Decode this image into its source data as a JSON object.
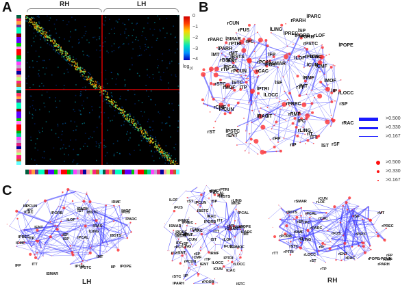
{
  "figure": {
    "panel_a": {
      "letter": "A",
      "hemisphere_labels": [
        "RH",
        "LH"
      ],
      "colorbar": {
        "ticks": [
          "0",
          "−1",
          "−2",
          "−3",
          "−4"
        ],
        "unit": "log",
        "unit_sub": "10",
        "colors": [
          "#d00000",
          "#ffd000",
          "#00e0c0",
          "#0090ff",
          "#0000c0"
        ]
      },
      "divider_color": "#cc0000",
      "strip_colors": [
        "#006040",
        "#ff3060",
        "#ffa040",
        "#703090",
        "#00ffc0",
        "#00ffc0",
        "#800000",
        "#6000ff",
        "#6000ff",
        "#00d000",
        "#ff80ff",
        "#ff0000",
        "#ff0000",
        "#00b000",
        "#00d0a0",
        "#ff40ff",
        "#c0a0d0",
        "#e02080",
        "#0000a0",
        "#ffa0a0",
        "#c0ff80",
        "#ff2080",
        "#c06020",
        "#60ffff"
      ]
    },
    "panel_b": {
      "letter": "B",
      "node_labels": [
        "rPORB",
        "rRMF",
        "rLOF",
        "rPTRI",
        "lLOF",
        "lMOF",
        "lPORB",
        "rMOF",
        "rFP",
        "lFP",
        "lRAC",
        "rRAC",
        "rSF",
        "rPOPE",
        "lRMF",
        "lPTRI",
        "lSF",
        "lPOPE",
        "lENT",
        "rCMF",
        "rTP",
        "rPREC",
        "rPSTC",
        "rSMAR",
        "rST",
        "lCMF",
        "rCAC",
        "lCAC",
        "rTT",
        "rENT",
        "rMT",
        "rPARH",
        "lSMAR",
        "lPREC",
        "rPARC",
        "lMT",
        "rPC",
        "lBSTS",
        "rBSTS",
        "lPC",
        "lIT",
        "rIT",
        "lMT",
        "lPSTC",
        "lIP",
        "lPARC",
        "rIP",
        "rSP",
        "lPARH",
        "rPCUN",
        "lTP",
        "lFUS",
        "lSTC",
        "rSTC",
        "lPCUN",
        "rLOCC",
        "lTT",
        "lLOCC",
        "lST",
        "lSP",
        "lCUN",
        "rCUN",
        "lPCAL",
        "rPCAL",
        "rFUS",
        "lLING",
        "rLING"
      ],
      "edge_legend": [
        ">0.500",
        ">0.330",
        ">0.167"
      ],
      "node_legend": [
        ">0.500",
        ">0.330",
        ">0.167"
      ],
      "edge_color": "#1a1aff",
      "node_color": "#ff1010"
    },
    "panel_c": {
      "letter": "C",
      "views": [
        {
          "caption": "LH",
          "labels": [
            "lSF",
            "lCMF",
            "lPARC",
            "lPREC",
            "lPC",
            "lPSTC",
            "lSP",
            "lCAC",
            "lRMF",
            "lPOPE",
            "lSMAR",
            "lPCUN",
            "lIP",
            "lFP",
            "lRAC",
            "lPTRI",
            "lBSTC",
            "lMOF",
            "lPORB",
            "lLOF",
            "lTT",
            "lST",
            "lBSTS",
            "lMT",
            "lPARH",
            "lIT",
            "lFUS",
            "lLING",
            "lPCAL",
            "lTP",
            "lENT"
          ]
        },
        {
          "caption": "",
          "labels": [
            "lFP",
            "rFP",
            "lPORB",
            "rPORB",
            "lMOF",
            "rMOF",
            "lRMF",
            "lLOF",
            "rLOF",
            "rRMF",
            "lRAC",
            "rRAC",
            "lPTRI",
            "rPTRI",
            "lTP",
            "rTP",
            "lSF",
            "rSF",
            "lCAC",
            "rCAC",
            "lPOPE",
            "rPOPE",
            "lENT",
            "rENT",
            "lCMF",
            "rCMF",
            "lST",
            "rST",
            "lMT",
            "rMT",
            "lPARH",
            "rPARH",
            "lPC",
            "rPC",
            "lPREC",
            "rPREC",
            "lTT",
            "rTT",
            "lBSTC",
            "lBSTS",
            "rBSTS",
            "lSMAR",
            "rSMAR",
            "lFUS",
            "rFUS",
            "lPARC",
            "rPARC",
            "lSTC",
            "rSTC",
            "lLING",
            "rLING",
            "lPCUN",
            "rPCUN",
            "lIP",
            "rIP",
            "lSP",
            "rSP",
            "lPCAL",
            "rPCAL",
            "lLOCC",
            "rLOCC",
            "lCUN",
            "rCUN"
          ]
        },
        {
          "caption": "RH",
          "labels": [
            "rPARC",
            "rCMF",
            "rSF",
            "rPSTC",
            "rPREC",
            "rSP",
            "rPC",
            "rPCUN",
            "rSMAR",
            "rCAC",
            "rRMF",
            "rFP",
            "rIP",
            "rSTC",
            "rPOPE",
            "rRAC",
            "rPTRI",
            "rPORB",
            "rLOF",
            "rCUN",
            "rBSTS",
            "rTT",
            "rST",
            "rPCAL",
            "rMT",
            "rLING",
            "rPARH",
            "rLOCC",
            "rFUS",
            "rIT",
            "rENT",
            "rTP"
          ]
        }
      ]
    }
  }
}
